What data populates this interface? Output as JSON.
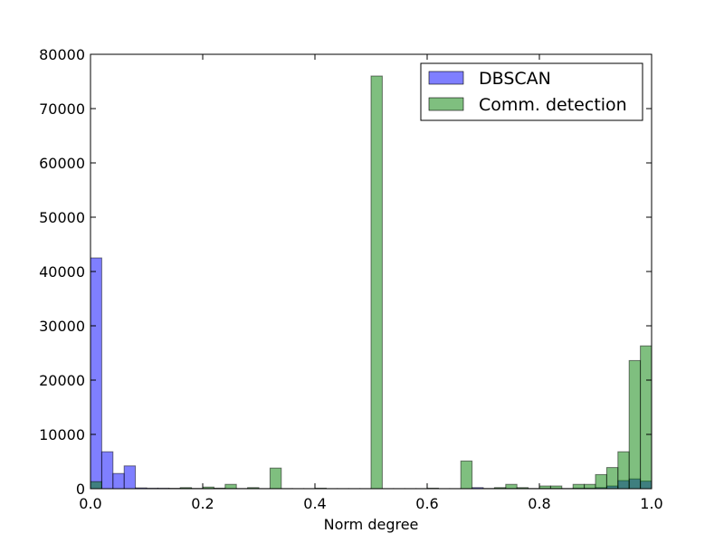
{
  "chart_data": {
    "type": "bar",
    "title": "",
    "xlabel": "Norm degree",
    "ylabel": "",
    "xlim": [
      0.0,
      1.0
    ],
    "ylim": [
      0,
      80000
    ],
    "grid": false,
    "legend_position": "top-right",
    "bin_width": 0.02,
    "x_ticks": [
      "0.0",
      "0.2",
      "0.4",
      "0.6",
      "0.8",
      "1.0"
    ],
    "y_ticks": [
      "0",
      "10000",
      "20000",
      "30000",
      "40000",
      "50000",
      "60000",
      "70000",
      "80000"
    ],
    "bin_starts": [
      0.0,
      0.02,
      0.04,
      0.06,
      0.08,
      0.1,
      0.12,
      0.14,
      0.16,
      0.18,
      0.2,
      0.22,
      0.24,
      0.26,
      0.28,
      0.3,
      0.32,
      0.34,
      0.36,
      0.38,
      0.4,
      0.42,
      0.44,
      0.46,
      0.48,
      0.5,
      0.52,
      0.54,
      0.56,
      0.58,
      0.6,
      0.62,
      0.64,
      0.66,
      0.68,
      0.7,
      0.72,
      0.74,
      0.76,
      0.78,
      0.8,
      0.82,
      0.84,
      0.86,
      0.88,
      0.9,
      0.92,
      0.94,
      0.96,
      0.98
    ],
    "series": [
      {
        "name": "DBSCAN",
        "color": "#0000ff",
        "values": [
          42500,
          6800,
          2800,
          4200,
          150,
          100,
          100,
          80,
          60,
          60,
          50,
          40,
          40,
          40,
          30,
          30,
          30,
          30,
          20,
          20,
          20,
          20,
          20,
          20,
          20,
          20,
          20,
          20,
          20,
          20,
          20,
          20,
          20,
          20,
          200,
          50,
          50,
          50,
          50,
          50,
          50,
          50,
          50,
          100,
          100,
          200,
          500,
          1500,
          1800,
          1400
        ]
      },
      {
        "name": "Comm. detection",
        "color": "#008000",
        "values": [
          1300,
          0,
          0,
          0,
          0,
          0,
          0,
          0,
          200,
          0,
          300,
          100,
          800,
          0,
          200,
          0,
          3800,
          0,
          0,
          0,
          100,
          0,
          0,
          0,
          0,
          76000,
          0,
          0,
          0,
          0,
          100,
          0,
          0,
          5100,
          0,
          0,
          200,
          800,
          200,
          0,
          500,
          500,
          0,
          800,
          800,
          2600,
          3900,
          6800,
          23600,
          26300
        ]
      }
    ]
  }
}
